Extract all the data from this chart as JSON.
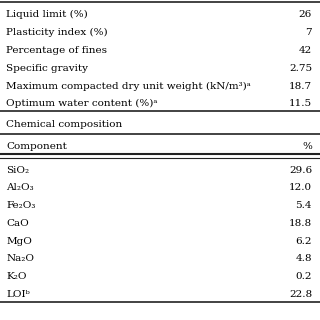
{
  "physical_rows": [
    [
      "Liquid limit (%)",
      "26"
    ],
    [
      "Plasticity index (%)",
      "7"
    ],
    [
      "Percentage of fines",
      "42"
    ],
    [
      "Specific gravity",
      "2.75"
    ],
    [
      "Maximum compacted dry unit weight (kN/m³)ᵃ",
      "18.7"
    ],
    [
      "Optimum water content (%)ᵃ",
      "11.5"
    ]
  ],
  "chem_header": "Chemical composition",
  "chem_col_headers": [
    "Component",
    "%"
  ],
  "chem_rows": [
    [
      "SiO₂",
      "29.6"
    ],
    [
      "Al₂O₃",
      "12.0"
    ],
    [
      "Fe₂O₃",
      "5.4"
    ],
    [
      "CaO",
      "18.8"
    ],
    [
      "MgO",
      "6.2"
    ],
    [
      "Na₂O",
      "4.8"
    ],
    [
      "K₂O",
      "0.2"
    ],
    [
      "LOIᵇ",
      "22.8"
    ]
  ],
  "bg_color": "#ffffff",
  "text_color": "#000000",
  "font_size": 7.5
}
